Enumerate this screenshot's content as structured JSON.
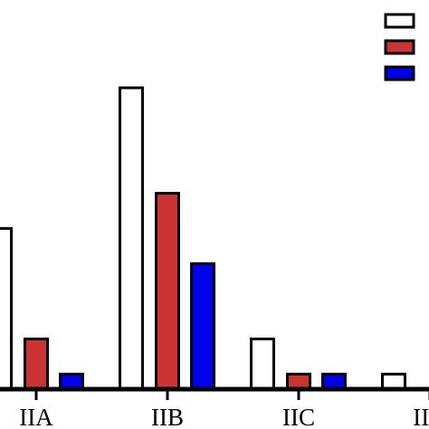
{
  "chart_data": {
    "type": "bar",
    "categories": [
      "IIA",
      "IIB",
      "IIC",
      "IID"
    ],
    "series": [
      {
        "color": "#ffffff",
        "values": [
          16,
          30,
          5,
          1.5
        ]
      },
      {
        "color": "#cc3333",
        "values": [
          5,
          19.5,
          1.5,
          0
        ]
      },
      {
        "color": "#0000ee",
        "values": [
          1.5,
          12.5,
          1.5,
          0
        ]
      }
    ],
    "ylim": [
      0,
      40
    ],
    "grid": false,
    "legend_position": "top-right"
  }
}
